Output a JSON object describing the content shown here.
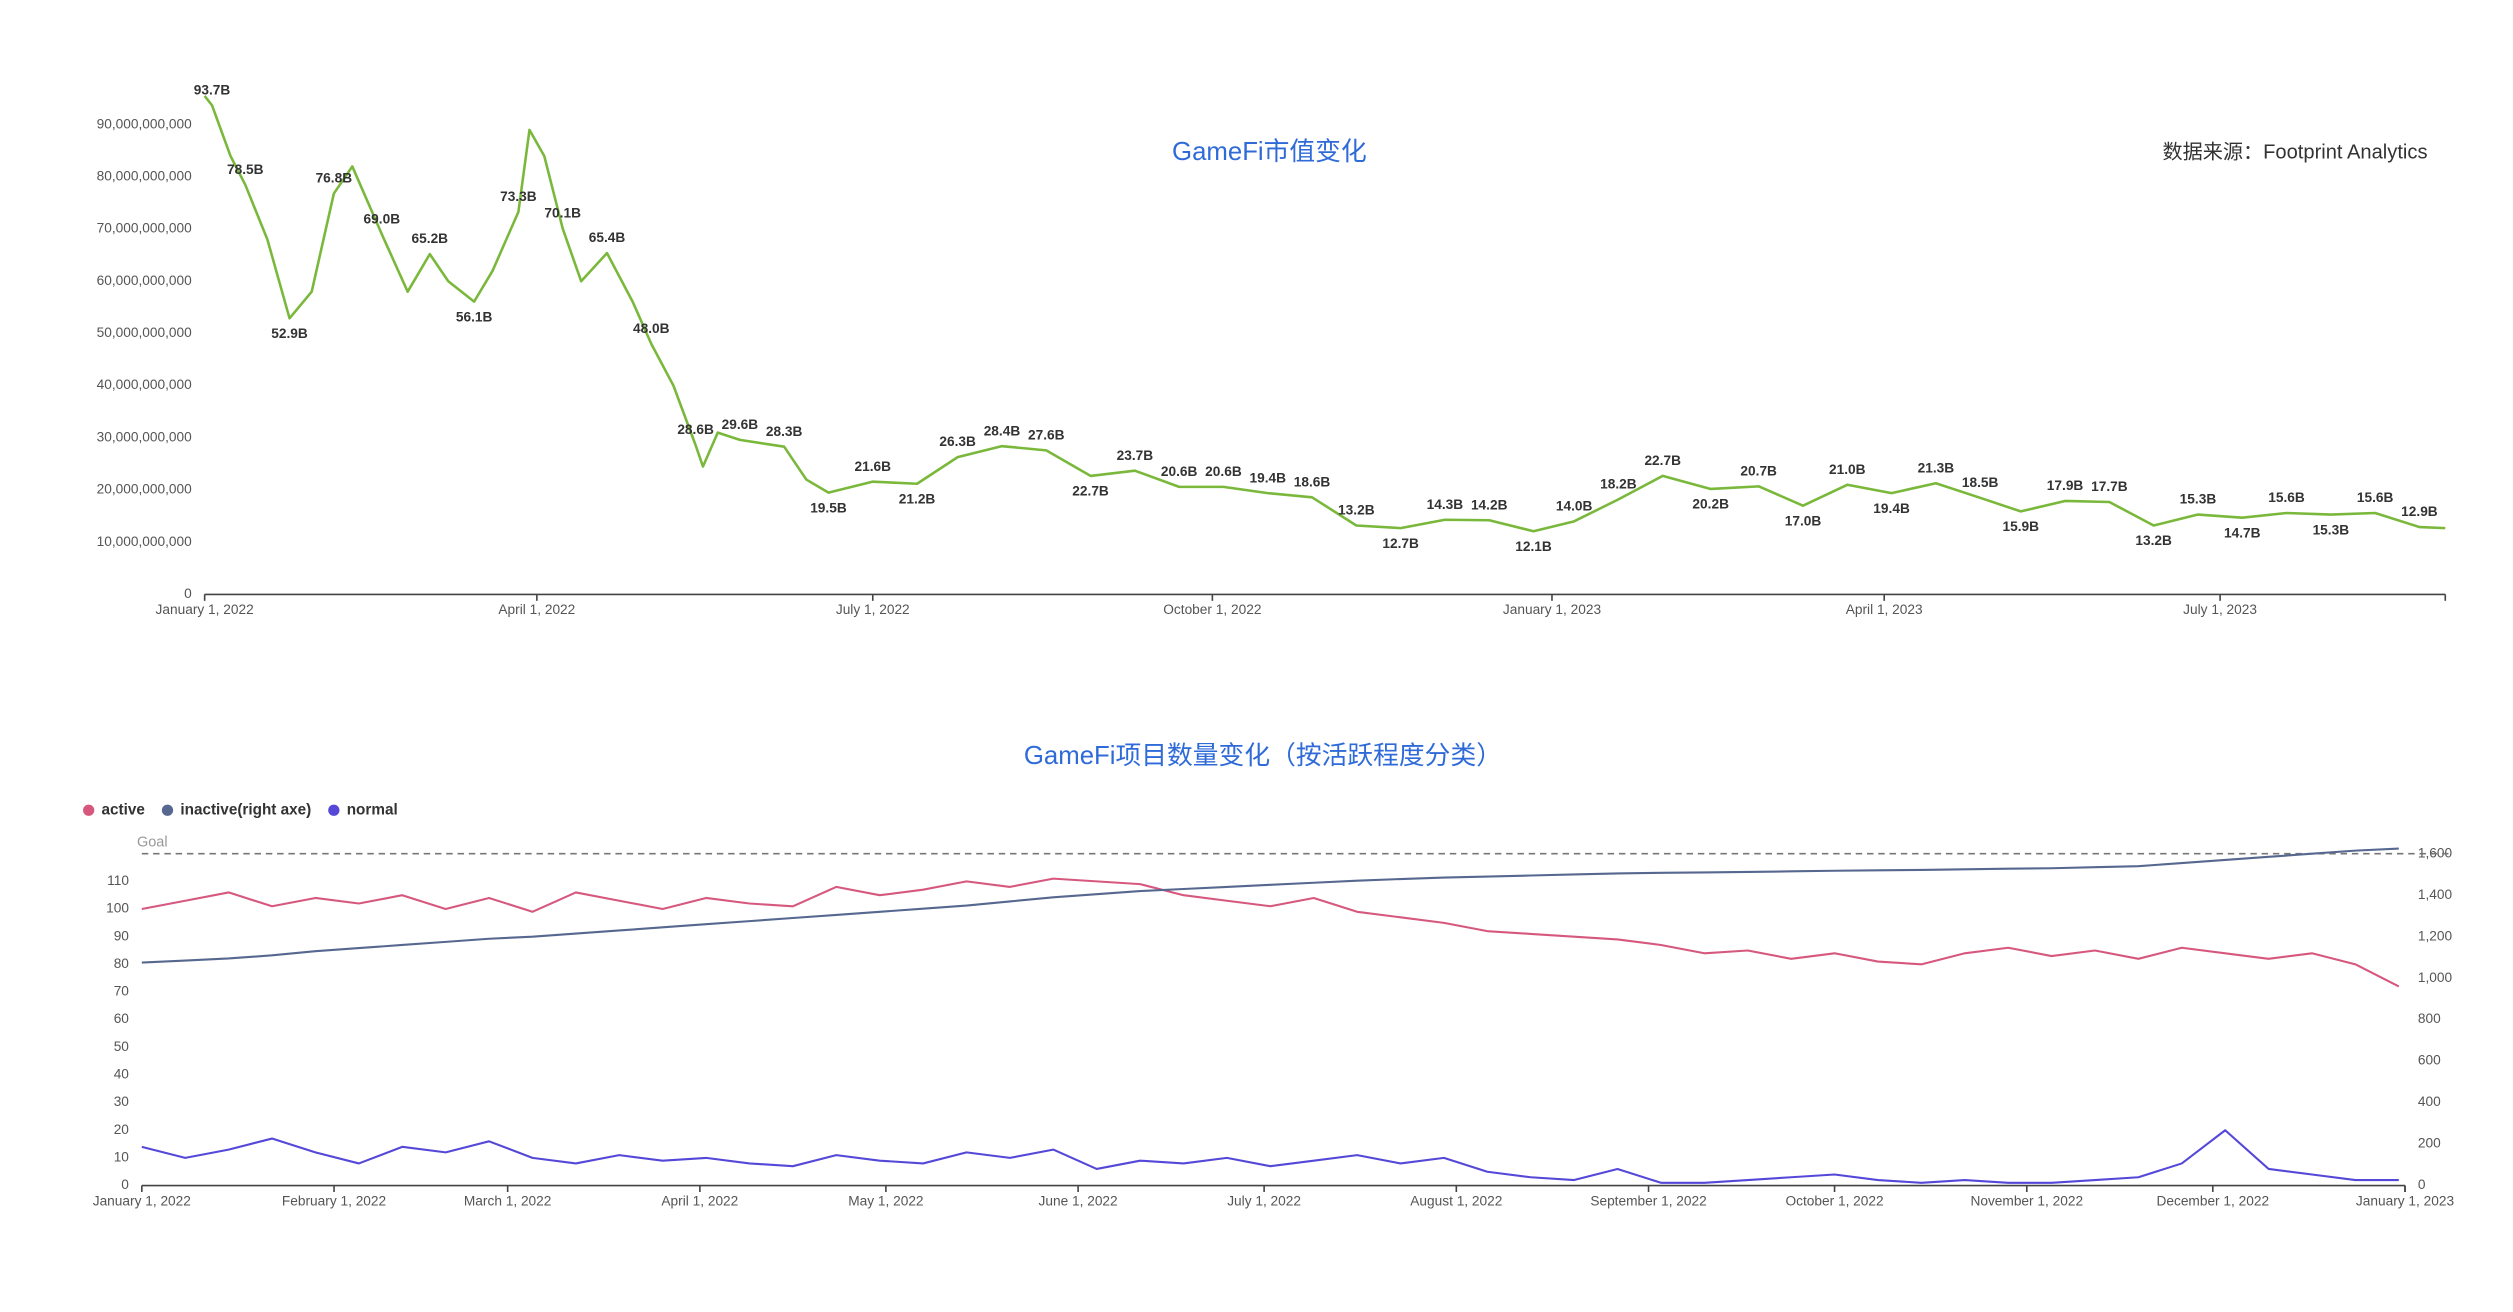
{
  "chart_data": [
    {
      "type": "line",
      "title": "GameFi市值变化",
      "source": "数据来源：Footprint Analytics",
      "color": "#7ab83c",
      "x": [
        "2022-01-01",
        "2022-01-03",
        "2022-01-08",
        "2022-01-12",
        "2022-01-18",
        "2022-01-24",
        "2022-01-30",
        "2022-02-05",
        "2022-02-10",
        "2022-02-18",
        "2022-02-25",
        "2022-03-03",
        "2022-03-08",
        "2022-03-15",
        "2022-03-20",
        "2022-03-27",
        "2022-03-30",
        "2022-04-03",
        "2022-04-08",
        "2022-04-13",
        "2022-04-20",
        "2022-04-27",
        "2022-05-02",
        "2022-05-08",
        "2022-05-14",
        "2022-05-16",
        "2022-05-20",
        "2022-05-26",
        "2022-06-07",
        "2022-06-13",
        "2022-06-19",
        "2022-07-01",
        "2022-07-13",
        "2022-07-24",
        "2022-08-05",
        "2022-08-17",
        "2022-08-29",
        "2022-09-10",
        "2022-09-22",
        "2022-10-04",
        "2022-10-16",
        "2022-10-28",
        "2022-11-09",
        "2022-11-21",
        "2022-12-03",
        "2022-12-15",
        "2022-12-27",
        "2023-01-07",
        "2023-01-19",
        "2023-01-31",
        "2023-02-13",
        "2023-02-26",
        "2023-03-10",
        "2023-03-22",
        "2023-04-03",
        "2023-04-15",
        "2023-04-27",
        "2023-05-08",
        "2023-05-20",
        "2023-06-01",
        "2023-06-13",
        "2023-06-25",
        "2023-07-07",
        "2023-07-19",
        "2023-07-31",
        "2023-08-12",
        "2023-08-24",
        "2023-08-31"
      ],
      "values": [
        95500000000,
        93700000000,
        84000000000,
        78500000000,
        68000000000,
        52900000000,
        58000000000,
        76800000000,
        82000000000,
        69000000000,
        58000000000,
        65200000000,
        60000000000,
        56100000000,
        62000000000,
        73300000000,
        89000000000,
        84000000000,
        70100000000,
        60000000000,
        65400000000,
        56000000000,
        48000000000,
        40000000000,
        28600000000,
        24500000000,
        31000000000,
        29600000000,
        28300000000,
        22000000000,
        19500000000,
        21600000000,
        21200000000,
        26300000000,
        28400000000,
        27600000000,
        22700000000,
        23700000000,
        20600000000,
        20600000000,
        19400000000,
        18600000000,
        13200000000,
        12700000000,
        14300000000,
        14200000000,
        12100000000,
        14000000000,
        18200000000,
        22700000000,
        20200000000,
        20700000000,
        17000000000,
        21000000000,
        19400000000,
        21300000000,
        18500000000,
        15900000000,
        17900000000,
        17700000000,
        13200000000,
        15300000000,
        14700000000,
        15600000000,
        15300000000,
        15600000000,
        12900000000,
        12700000000
      ],
      "value_labels": [
        null,
        "93.7B",
        null,
        "78.5B",
        null,
        "52.9B",
        null,
        "76.8B",
        null,
        "69.0B",
        null,
        "65.2B",
        null,
        "56.1B",
        null,
        "73.3B",
        null,
        null,
        "70.1B",
        null,
        "65.4B",
        null,
        "48.0B",
        null,
        "28.6B",
        null,
        null,
        "29.6B",
        "28.3B",
        null,
        "19.5B",
        "21.6B",
        "21.2B",
        "26.3B",
        "28.4B",
        "27.6B",
        "22.7B",
        "23.7B",
        "20.6B",
        "20.6B",
        "19.4B",
        "18.6B",
        "13.2B",
        "12.7B",
        "14.3B",
        "14.2B",
        "12.1B",
        "14.0B",
        "18.2B",
        "22.7B",
        "20.2B",
        "20.7B",
        "17.0B",
        "21.0B",
        "19.4B",
        "21.3B",
        "18.5B",
        "15.9B",
        "17.9B",
        "17.7B",
        "13.2B",
        "15.3B",
        "14.7B",
        "15.6B",
        "15.3B",
        "15.6B",
        "12.9B",
        null
      ],
      "xlim": [
        "2022-01-01",
        "2023-08-31"
      ],
      "xticks": [
        {
          "value": "2022-01-01",
          "label": "January 1, 2022"
        },
        {
          "value": "2022-04-01",
          "label": "April 1, 2022"
        },
        {
          "value": "2022-07-01",
          "label": "July 1, 2022"
        },
        {
          "value": "2022-10-01",
          "label": "October 1, 2022"
        },
        {
          "value": "2023-01-01",
          "label": "January 1, 2023"
        },
        {
          "value": "2023-04-01",
          "label": "April 1, 2023"
        },
        {
          "value": "2023-07-01",
          "label": "July 1, 2023"
        }
      ],
      "ylim": [
        0,
        100000000000
      ],
      "yticks": [
        0,
        {
          "value": 10000000000,
          "label": "10,000,000,000"
        },
        {
          "value": 20000000000,
          "label": "20,000,000,000"
        },
        {
          "value": 30000000000,
          "label": "30,000,000,000"
        },
        {
          "value": 40000000000,
          "label": "40,000,000,000"
        },
        {
          "value": 50000000000,
          "label": "50,000,000,000"
        },
        {
          "value": 60000000000,
          "label": "60,000,000,000"
        },
        {
          "value": 70000000000,
          "label": "70,000,000,000"
        },
        {
          "value": 80000000000,
          "label": "80,000,000,000"
        },
        {
          "value": 90000000000,
          "label": "90,000,000,000"
        }
      ],
      "grid": false
    },
    {
      "type": "line",
      "title": "GameFi项目数量变化（按活跃程度分类）",
      "legend": "top-left",
      "x": [
        "2022-01-01",
        "2022-01-08",
        "2022-01-15",
        "2022-01-22",
        "2022-01-29",
        "2022-02-05",
        "2022-02-12",
        "2022-02-19",
        "2022-02-26",
        "2022-03-05",
        "2022-03-12",
        "2022-03-19",
        "2022-03-26",
        "2022-04-02",
        "2022-04-09",
        "2022-04-16",
        "2022-04-23",
        "2022-04-30",
        "2022-05-07",
        "2022-05-14",
        "2022-05-21",
        "2022-05-28",
        "2022-06-04",
        "2022-06-11",
        "2022-06-18",
        "2022-06-25",
        "2022-07-02",
        "2022-07-09",
        "2022-07-16",
        "2022-07-23",
        "2022-07-30",
        "2022-08-06",
        "2022-08-13",
        "2022-08-20",
        "2022-08-27",
        "2022-09-03",
        "2022-09-10",
        "2022-09-17",
        "2022-09-24",
        "2022-10-01",
        "2022-10-08",
        "2022-10-15",
        "2022-10-22",
        "2022-10-29",
        "2022-11-05",
        "2022-11-12",
        "2022-11-19",
        "2022-11-26",
        "2022-12-03",
        "2022-12-10",
        "2022-12-17",
        "2022-12-24",
        "2022-12-31"
      ],
      "series": [
        {
          "name": "active",
          "color": "#d6587e",
          "values": [
            100,
            103,
            106,
            101,
            104,
            102,
            105,
            100,
            104,
            99,
            106,
            103,
            100,
            104,
            102,
            101,
            108,
            105,
            107,
            110,
            108,
            111,
            110,
            109,
            105,
            103,
            101,
            104,
            99,
            97,
            95,
            92,
            91,
            90,
            89,
            87,
            84,
            85,
            82,
            84,
            81,
            80,
            84,
            86,
            83,
            85,
            82,
            86,
            84,
            82,
            84,
            80,
            72
          ]
        },
        {
          "name": "inactive(right axe)",
          "color": "#56688f",
          "axis": "y2",
          "values": [
            1075,
            1085,
            1095,
            1110,
            1130,
            1145,
            1160,
            1175,
            1190,
            1200,
            1215,
            1230,
            1245,
            1260,
            1275,
            1290,
            1305,
            1320,
            1335,
            1350,
            1370,
            1390,
            1405,
            1420,
            1430,
            1440,
            1450,
            1460,
            1470,
            1478,
            1485,
            1490,
            1495,
            1500,
            1505,
            1508,
            1510,
            1512,
            1515,
            1518,
            1520,
            1522,
            1525,
            1528,
            1530,
            1535,
            1540,
            1555,
            1570,
            1585,
            1600,
            1615,
            1625
          ]
        },
        {
          "name": "normal",
          "color": "#5548d8",
          "values": [
            14,
            10,
            13,
            17,
            12,
            8,
            14,
            12,
            16,
            10,
            8,
            11,
            9,
            10,
            8,
            7,
            11,
            9,
            8,
            12,
            10,
            13,
            6,
            9,
            8,
            10,
            7,
            9,
            11,
            8,
            10,
            5,
            3,
            2,
            6,
            1,
            1,
            2,
            3,
            4,
            2,
            1,
            2,
            1,
            1,
            2,
            3,
            8,
            20,
            6,
            4,
            2,
            2
          ]
        }
      ],
      "goal": {
        "label": "Goal",
        "value": 120
      },
      "xlim": [
        "2022-01-01",
        "2023-01-01"
      ],
      "xticks": [
        {
          "value": "2022-01-01",
          "label": "January 1, 2022"
        },
        {
          "value": "2022-02-01",
          "label": "February 1, 2022"
        },
        {
          "value": "2022-03-01",
          "label": "March 1, 2022"
        },
        {
          "value": "2022-04-01",
          "label": "April 1, 2022"
        },
        {
          "value": "2022-05-01",
          "label": "May 1, 2022"
        },
        {
          "value": "2022-06-01",
          "label": "June 1, 2022"
        },
        {
          "value": "2022-07-01",
          "label": "July 1, 2022"
        },
        {
          "value": "2022-08-01",
          "label": "August 1, 2022"
        },
        {
          "value": "2022-09-01",
          "label": "September 1, 2022"
        },
        {
          "value": "2022-10-01",
          "label": "October 1, 2022"
        },
        {
          "value": "2022-11-01",
          "label": "November 1, 2022"
        },
        {
          "value": "2022-12-01",
          "label": "December 1, 2022"
        },
        {
          "value": "2023-01-01",
          "label": "January 1, 2023"
        }
      ],
      "ylim": [
        0,
        120
      ],
      "yticks": [
        0,
        10,
        20,
        30,
        40,
        50,
        60,
        70,
        80,
        90,
        100,
        110
      ],
      "y2lim": [
        0,
        1600
      ],
      "y2ticks": [
        0,
        200,
        400,
        600,
        800,
        {
          "value": 1000,
          "label": "1,000"
        },
        {
          "value": 1200,
          "label": "1,200"
        },
        {
          "value": 1400,
          "label": "1,400"
        },
        {
          "value": 1600,
          "label": "1,600"
        }
      ],
      "grid": false
    }
  ]
}
